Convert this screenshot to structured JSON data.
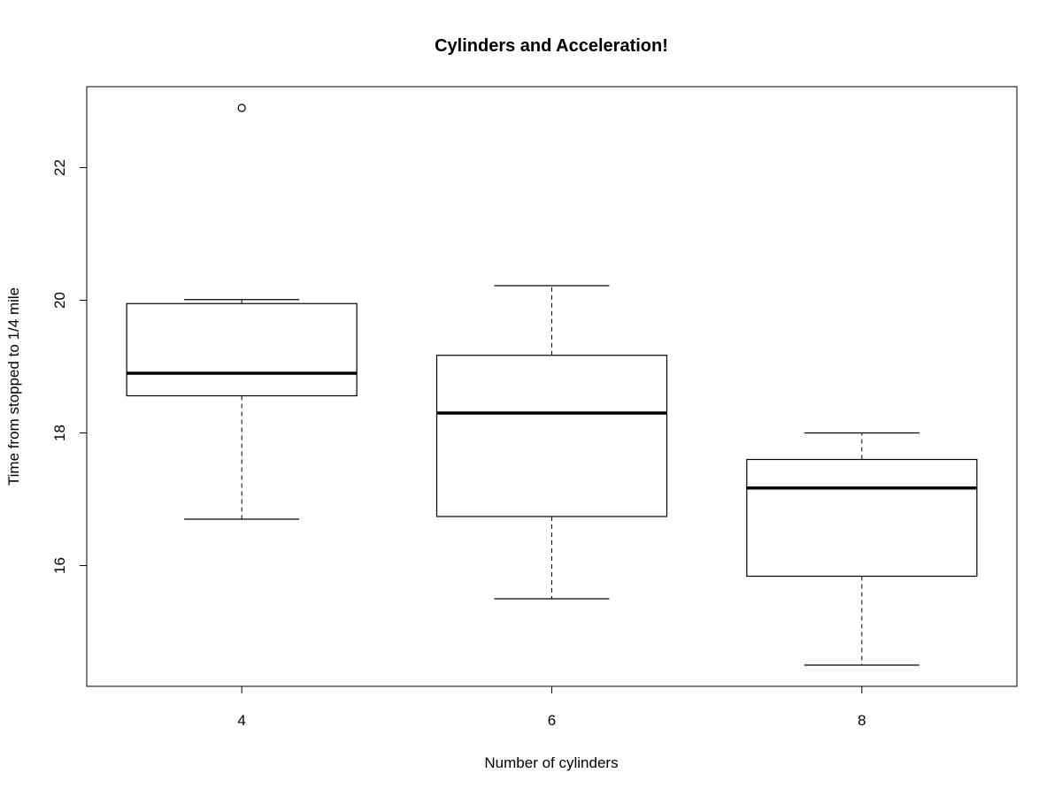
{
  "chart_data": {
    "type": "boxplot",
    "title": "Cylinders and Acceleration!",
    "xlabel": "Number of cylinders",
    "ylabel": "Time from stopped to 1/4 mile",
    "ylim": [
      14.18,
      23.22
    ],
    "yticks": [
      16,
      18,
      20,
      22
    ],
    "categories": [
      "4",
      "6",
      "8"
    ],
    "boxes": [
      {
        "category": "4",
        "whisker_low": 16.7,
        "q1": 18.56,
        "median": 18.9,
        "q3": 19.95,
        "whisker_high": 20.01,
        "outliers": [
          22.9
        ]
      },
      {
        "category": "6",
        "whisker_low": 15.5,
        "q1": 16.74,
        "median": 18.3,
        "q3": 19.17,
        "whisker_high": 20.22,
        "outliers": []
      },
      {
        "category": "8",
        "whisker_low": 14.5,
        "q1": 15.84,
        "median": 17.17,
        "q3": 17.6,
        "whisker_high": 18.0,
        "outliers": []
      }
    ],
    "grid": false,
    "legend": "none"
  }
}
